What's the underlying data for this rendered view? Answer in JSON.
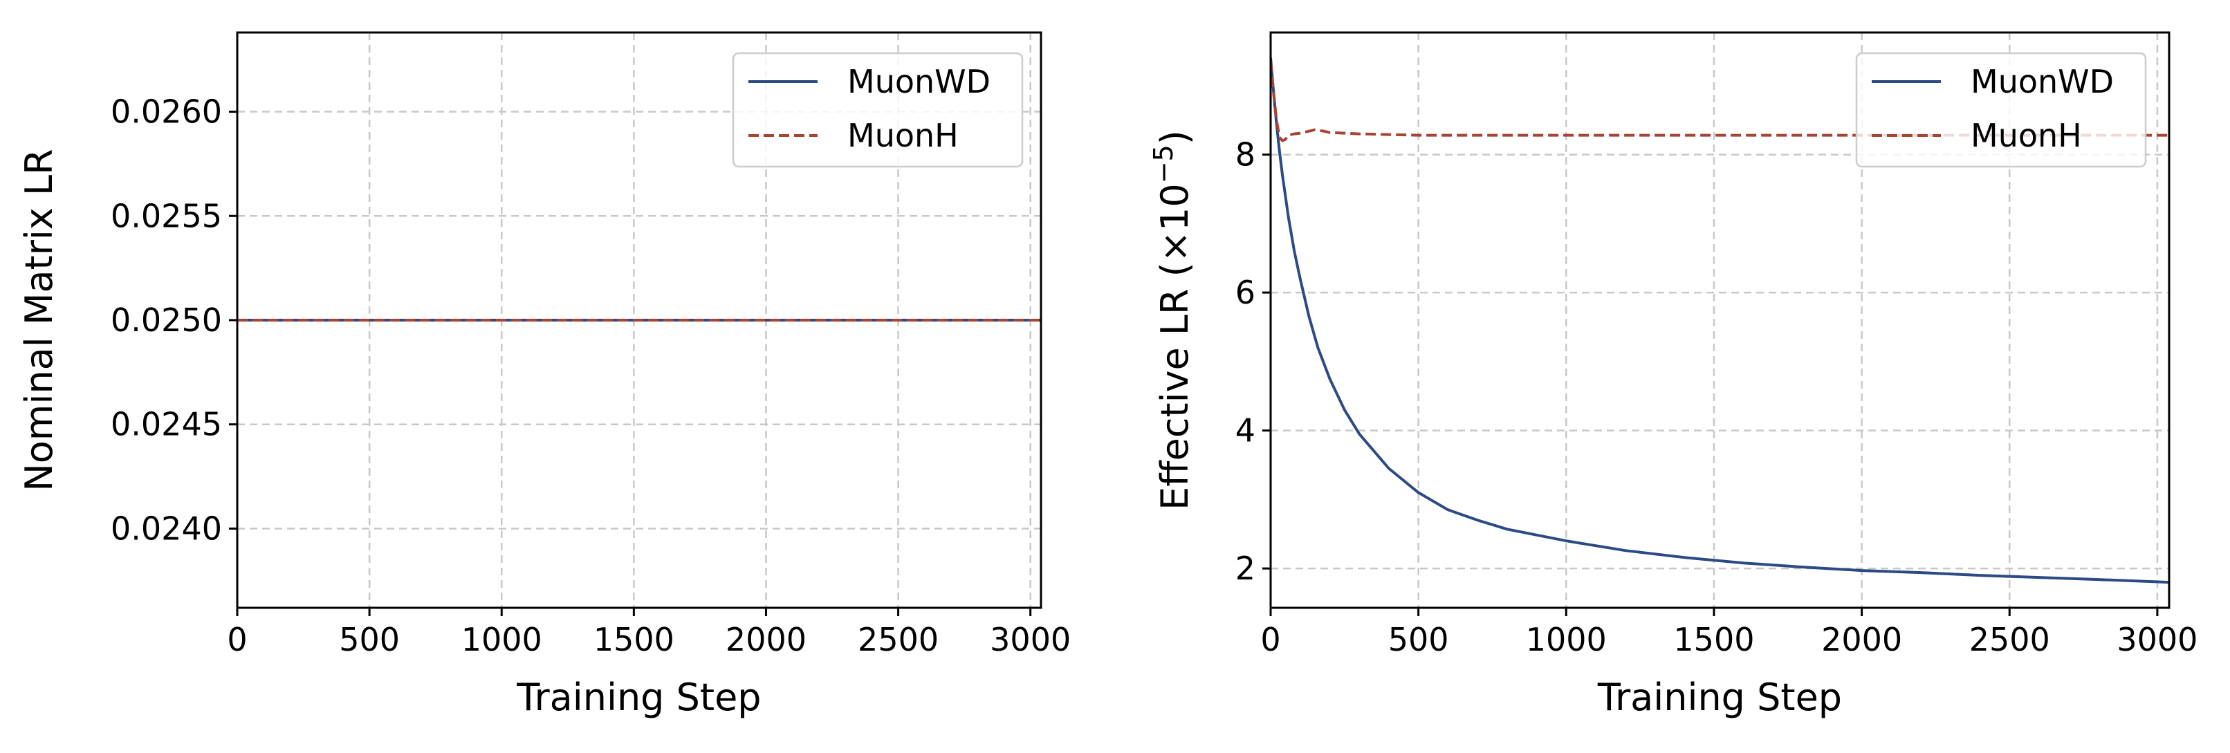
{
  "chart_data": [
    {
      "type": "line",
      "xlabel": "Training Step",
      "ylabel": "Nominal Matrix LR",
      "xlim": [
        0,
        3040
      ],
      "ylim": [
        0.02362,
        0.02638
      ],
      "xticks": [
        0,
        500,
        1000,
        1500,
        2000,
        2500,
        3000
      ],
      "xtick_labels": [
        "0",
        "500",
        "1000",
        "1500",
        "2000",
        "2500",
        "3000"
      ],
      "yticks": [
        0.024,
        0.0245,
        0.025,
        0.0255,
        0.026
      ],
      "ytick_labels": [
        "0.0240",
        "0.0245",
        "0.0250",
        "0.0255",
        "0.0260"
      ],
      "grid": true,
      "legend_position": "top-right",
      "series": [
        {
          "name": "MuonWD",
          "color": "#2c4a85",
          "linestyle": "solid",
          "x": [
            0,
            3040
          ],
          "y": [
            0.025,
            0.025
          ]
        },
        {
          "name": "MuonH",
          "color": "#a84432",
          "linestyle": "dashed",
          "x": [
            0,
            3040
          ],
          "y": [
            0.025,
            0.025
          ]
        }
      ]
    },
    {
      "type": "line",
      "xlabel": "Training Step",
      "ylabel": "Effective LR (×10",
      "ylabel_sup": "−5",
      "ylabel_close": ")",
      "xlim": [
        0,
        3040
      ],
      "ylim": [
        1.43,
        9.77
      ],
      "xticks": [
        0,
        500,
        1000,
        1500,
        2000,
        2500,
        3000
      ],
      "xtick_labels": [
        "0",
        "500",
        "1000",
        "1500",
        "2000",
        "2500",
        "3000"
      ],
      "yticks": [
        2,
        4,
        6,
        8
      ],
      "ytick_labels": [
        "2",
        "4",
        "6",
        "8"
      ],
      "grid": true,
      "legend_position": "top-right",
      "series": [
        {
          "name": "MuonWD",
          "color": "#2c4a85",
          "linestyle": "solid",
          "x": [
            0,
            10,
            20,
            30,
            40,
            60,
            80,
            100,
            130,
            160,
            200,
            250,
            300,
            400,
            500,
            600,
            700,
            800,
            1000,
            1200,
            1400,
            1600,
            1800,
            2000,
            2200,
            2400,
            2600,
            2800,
            3040
          ],
          "y": [
            9.4,
            8.9,
            8.45,
            8.05,
            7.7,
            7.1,
            6.6,
            6.2,
            5.65,
            5.2,
            4.75,
            4.3,
            3.95,
            3.45,
            3.1,
            2.85,
            2.7,
            2.57,
            2.4,
            2.26,
            2.16,
            2.08,
            2.02,
            1.97,
            1.94,
            1.9,
            1.87,
            1.84,
            1.8
          ]
        },
        {
          "name": "MuonH",
          "color": "#a84432",
          "linestyle": "dashed",
          "x": [
            0,
            10,
            20,
            30,
            40,
            50,
            60,
            80,
            100,
            120,
            150,
            180,
            200,
            250,
            300,
            400,
            500,
            700,
            1000,
            1300,
            1600,
            2000,
            2500,
            3040
          ],
          "y": [
            9.35,
            8.9,
            8.5,
            8.25,
            8.2,
            8.22,
            8.28,
            8.3,
            8.31,
            8.33,
            8.36,
            8.34,
            8.32,
            8.31,
            8.3,
            8.29,
            8.28,
            8.28,
            8.28,
            8.28,
            8.28,
            8.28,
            8.28,
            8.28
          ]
        }
      ]
    }
  ]
}
